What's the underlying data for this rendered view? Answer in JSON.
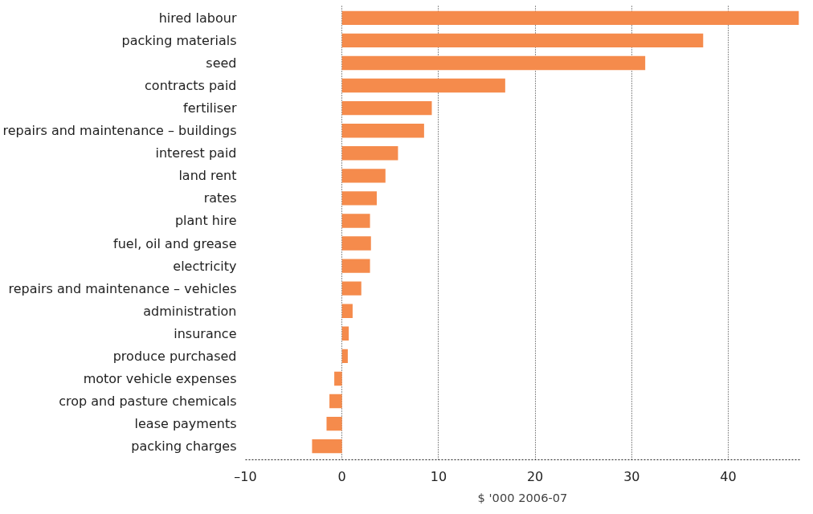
{
  "chart_data": {
    "type": "bar",
    "orientation": "horizontal",
    "xlabel": "$ '000 2006-07",
    "categories": [
      "hired labour",
      "packing materials",
      "seed",
      "contracts paid",
      "fertiliser",
      "repairs and maintenance – buildings",
      "interest paid",
      "land rent",
      "rates",
      "plant hire",
      "fuel, oil and grease",
      "electricity",
      "repairs and maintenance – vehicles",
      "administration",
      "insurance",
      "produce purchased",
      "motor vehicle expenses",
      "crop and pasture chemicals",
      "lease payments",
      "packing charges"
    ],
    "values": [
      47.3,
      37.4,
      31.4,
      16.9,
      9.3,
      8.5,
      5.8,
      4.5,
      3.6,
      2.9,
      3.0,
      2.9,
      2.0,
      1.1,
      0.7,
      0.6,
      -0.8,
      -1.3,
      -1.6,
      -3.1
    ],
    "color": "#f58b4c",
    "xlim": [
      -10,
      47.4
    ],
    "xticks": [
      {
        "value": -10,
        "label": "–10"
      },
      0,
      10,
      20,
      30,
      40
    ],
    "grid": "x"
  }
}
